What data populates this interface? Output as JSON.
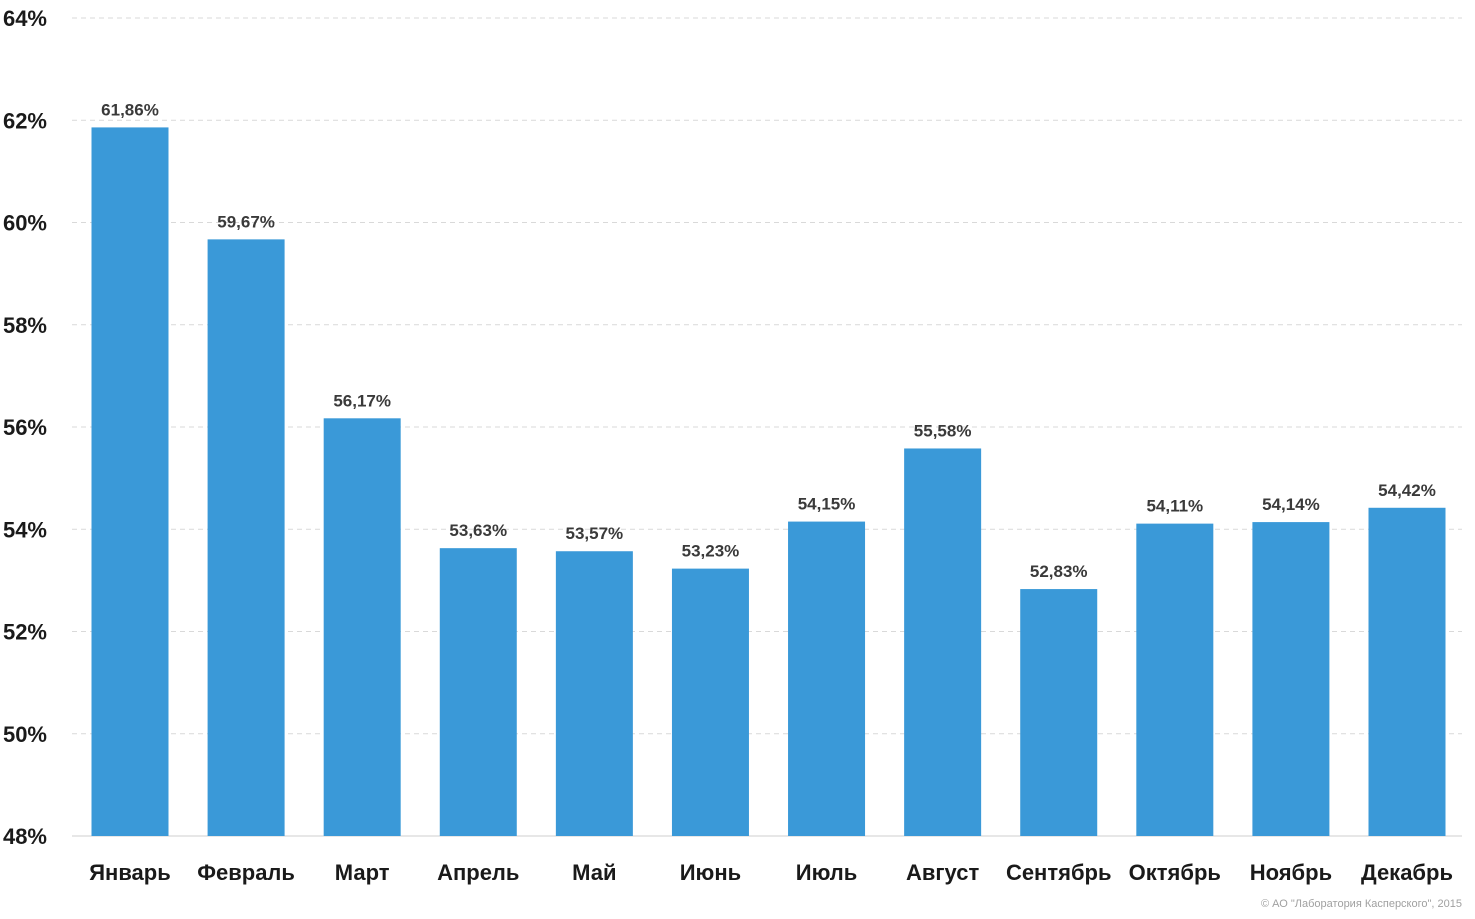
{
  "chart_data": {
    "type": "bar",
    "title": "",
    "xlabel": "",
    "ylabel": "",
    "ylim": [
      48,
      64
    ],
    "yticks": [
      48,
      50,
      52,
      54,
      56,
      58,
      60,
      62,
      64
    ],
    "ytick_labels": [
      "48%",
      "50%",
      "52%",
      "54%",
      "56%",
      "58%",
      "60%",
      "62%",
      "64%"
    ],
    "grid": true,
    "legend": "none",
    "bar_color": "#3a99d8",
    "categories": [
      "Январь",
      "Февраль",
      "Март",
      "Апрель",
      "Май",
      "Июнь",
      "Июль",
      "Август",
      "Сентябрь",
      "Октябрь",
      "Ноябрь",
      "Декабрь"
    ],
    "values": [
      61.86,
      59.67,
      56.17,
      53.63,
      53.57,
      53.23,
      54.15,
      55.58,
      52.83,
      54.11,
      54.14,
      54.42
    ],
    "data_labels": [
      "61,86%",
      "59,67%",
      "56,17%",
      "53,63%",
      "53,57%",
      "53,23%",
      "54,15%",
      "55,58%",
      "52,83%",
      "54,11%",
      "54,14%",
      "54,42%"
    ]
  },
  "copyright": "© АО \"Лаборатория Касперского\", 2015"
}
